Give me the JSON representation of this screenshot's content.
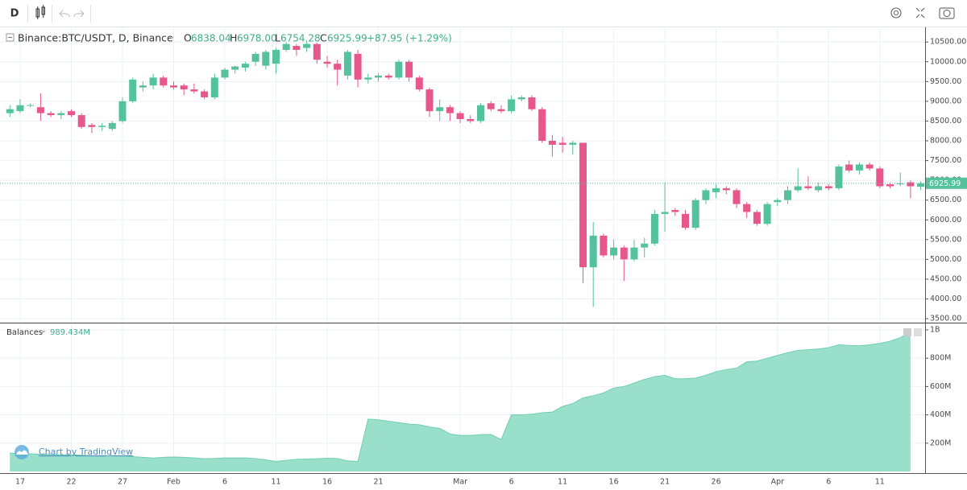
{
  "toolbar": {
    "interval": "D"
  },
  "watermark": "Chart by TradingView",
  "chart_data": [
    {
      "type": "candlestick",
      "title": "Binance:BTC/USDT, D, Binance",
      "ohlc_keys": [
        "O",
        "H",
        "L",
        "C"
      ],
      "last_value_labels": [
        "6838.04",
        "6978.00",
        "6754.28",
        "6925.99"
      ],
      "change_label": "+87.95 (+1.29%)",
      "up_color": "#53c29d",
      "down_color": "#e7578a",
      "grid": true,
      "categories": [
        null,
        "17",
        null,
        null,
        null,
        null,
        "22",
        null,
        null,
        null,
        null,
        "27",
        null,
        null,
        null,
        null,
        "Feb",
        null,
        null,
        null,
        null,
        "6",
        null,
        null,
        null,
        null,
        "11",
        null,
        null,
        null,
        null,
        "16",
        null,
        null,
        null,
        null,
        "21",
        null,
        null,
        null,
        null,
        null,
        null,
        null,
        "Mar",
        null,
        null,
        null,
        null,
        "6",
        null,
        null,
        null,
        null,
        "11",
        null,
        null,
        null,
        null,
        "16",
        null,
        null,
        null,
        null,
        "21",
        null,
        null,
        null,
        null,
        "26",
        null,
        null,
        null,
        null,
        null,
        "Apr",
        null,
        null,
        null,
        null,
        "6",
        null,
        null,
        null,
        null,
        "11",
        null,
        null,
        null,
        null
      ],
      "open": [
        8700,
        8750,
        8900,
        8850,
        8700,
        8650,
        8750,
        8650,
        8400,
        8350,
        8300,
        8500,
        9000,
        9350,
        9400,
        9600,
        9400,
        9400,
        9300,
        9250,
        9100,
        9600,
        9800,
        9850,
        10000,
        9900,
        9950,
        10300,
        10400,
        10350,
        10450,
        10000,
        9950,
        9650,
        10200,
        9550,
        9600,
        9650,
        9600,
        10000,
        9600,
        9300,
        8750,
        8850,
        8700,
        8550,
        8500,
        8950,
        8800,
        8750,
        9050,
        9100,
        8800,
        8000,
        7950,
        7900,
        7950,
        4800,
        5600,
        5100,
        5300,
        5000,
        5300,
        5400,
        6150,
        6250,
        6150,
        5800,
        6500,
        6700,
        6800,
        6750,
        6400,
        6200,
        5900,
        6450,
        6500,
        6750,
        6850,
        6750,
        6850,
        6800,
        7400,
        7250,
        7400,
        7300,
        6900,
        6900,
        6950,
        6838.04
      ],
      "high": [
        8900,
        9050,
        8950,
        9200,
        8750,
        8750,
        8800,
        8700,
        8450,
        8450,
        8500,
        9100,
        9600,
        9500,
        9700,
        9650,
        9500,
        9450,
        9450,
        9300,
        9700,
        9850,
        9900,
        10000,
        10250,
        10300,
        10350,
        10500,
        10450,
        10500,
        10480,
        10150,
        10050,
        10300,
        10300,
        9700,
        9700,
        9700,
        10050,
        10050,
        9650,
        9350,
        9050,
        8900,
        8750,
        8650,
        8950,
        9000,
        8900,
        9150,
        9150,
        9150,
        8850,
        8150,
        8100,
        8000,
        7950,
        5950,
        5650,
        5500,
        5350,
        5500,
        5550,
        6250,
        6950,
        6300,
        6250,
        6550,
        6800,
        6900,
        6850,
        6800,
        6450,
        6250,
        6450,
        6550,
        6850,
        7300,
        7100,
        6950,
        6900,
        7400,
        7500,
        7450,
        7450,
        7350,
        6950,
        7200,
        7000,
        6978
      ],
      "low": [
        8600,
        8700,
        8850,
        8500,
        8600,
        8550,
        8600,
        8300,
        8200,
        8250,
        8250,
        8450,
        8950,
        9250,
        9300,
        9350,
        9300,
        9150,
        9200,
        9050,
        9050,
        9550,
        9700,
        9750,
        9900,
        9800,
        9700,
        10250,
        10150,
        10250,
        9950,
        9850,
        9400,
        9550,
        9350,
        9450,
        9500,
        9550,
        9550,
        9500,
        9250,
        8600,
        8500,
        8500,
        8450,
        8450,
        8450,
        8750,
        8700,
        8700,
        9000,
        8750,
        7950,
        7600,
        7700,
        7650,
        4400,
        3800,
        5050,
        5000,
        4450,
        4950,
        5050,
        5350,
        5700,
        6100,
        5750,
        5750,
        6400,
        6550,
        6650,
        6300,
        6050,
        5850,
        5850,
        6350,
        6400,
        6700,
        6750,
        6700,
        6750,
        6750,
        7200,
        7150,
        7250,
        6800,
        6800,
        6850,
        6550,
        6754.28
      ],
      "close": [
        8800,
        8900,
        8905,
        8700,
        8650,
        8700,
        8650,
        8350,
        8350,
        8380,
        8450,
        9000,
        9550,
        9400,
        9600,
        9400,
        9350,
        9300,
        9250,
        9100,
        9600,
        9800,
        9880,
        9950,
        10200,
        10250,
        10300,
        10450,
        10300,
        10450,
        10050,
        9950,
        9800,
        10250,
        9550,
        9600,
        9650,
        9600,
        10000,
        9600,
        9300,
        8750,
        8850,
        8700,
        8550,
        8500,
        8900,
        8800,
        8750,
        9050,
        9100,
        8800,
        8000,
        7900,
        7900,
        7950,
        4800,
        5600,
        5100,
        5300,
        5000,
        5300,
        5400,
        6150,
        6200,
        6200,
        5800,
        6500,
        6750,
        6800,
        6750,
        6400,
        6200,
        5900,
        6400,
        6500,
        6750,
        6850,
        6800,
        6850,
        6800,
        7350,
        7250,
        7400,
        7300,
        6850,
        6850,
        6920,
        6850,
        6925.99
      ],
      "ylim": [
        3420,
        10850
      ],
      "yticks": [
        {
          "value": 3500,
          "label": "3500.00"
        },
        {
          "value": 4000,
          "label": "4000.00"
        },
        {
          "value": 4500,
          "label": "4500.00"
        },
        {
          "value": 5000,
          "label": "5000.00"
        },
        {
          "value": 5500,
          "label": "5500.00"
        },
        {
          "value": 6000,
          "label": "6000.00"
        },
        {
          "value": 6500,
          "label": "6500.00"
        },
        {
          "value": 7000,
          "label": "7000.00"
        },
        {
          "value": 7500,
          "label": "7500.00"
        },
        {
          "value": 8000,
          "label": "8000.00"
        },
        {
          "value": 8500,
          "label": "8500.00"
        },
        {
          "value": 9000,
          "label": "9000.00"
        },
        {
          "value": 9500,
          "label": "9500.00"
        },
        {
          "value": 10000,
          "label": "10000.00"
        },
        {
          "value": 10500,
          "label": "10500.00"
        }
      ]
    },
    {
      "type": "area",
      "name": "Balances",
      "color": "#9adfc9",
      "line_color": "#6fcfb0",
      "readout": {
        "value": 989434000,
        "label": "989.434M"
      },
      "values": [
        130000000,
        125000000,
        125000000,
        122000000,
        120000000,
        118000000,
        118000000,
        115000000,
        112000000,
        108000000,
        112000000,
        110000000,
        105000000,
        100000000,
        95000000,
        100000000,
        102000000,
        100000000,
        96000000,
        90000000,
        92000000,
        96000000,
        96000000,
        96000000,
        92000000,
        82000000,
        72000000,
        78000000,
        86000000,
        88000000,
        90000000,
        94000000,
        92000000,
        75000000,
        70000000,
        370000000,
        365000000,
        355000000,
        345000000,
        335000000,
        330000000,
        315000000,
        305000000,
        265000000,
        255000000,
        255000000,
        260000000,
        262000000,
        225000000,
        400000000,
        400000000,
        405000000,
        415000000,
        420000000,
        460000000,
        480000000,
        520000000,
        535000000,
        555000000,
        590000000,
        600000000,
        625000000,
        650000000,
        670000000,
        680000000,
        655000000,
        655000000,
        660000000,
        680000000,
        705000000,
        720000000,
        730000000,
        775000000,
        780000000,
        800000000,
        820000000,
        840000000,
        855000000,
        860000000,
        865000000,
        875000000,
        895000000,
        890000000,
        888000000,
        895000000,
        905000000,
        920000000,
        945000000,
        989434000,
        null
      ],
      "ylim": [
        0,
        1040000000
      ],
      "yticks": [
        {
          "value": 200000000,
          "label": "200M"
        },
        {
          "value": 400000000,
          "label": "400M"
        },
        {
          "value": 600000000,
          "label": "600M"
        },
        {
          "value": 800000000,
          "label": "800M"
        },
        {
          "value": 1000000000,
          "label": "1B"
        }
      ]
    }
  ]
}
